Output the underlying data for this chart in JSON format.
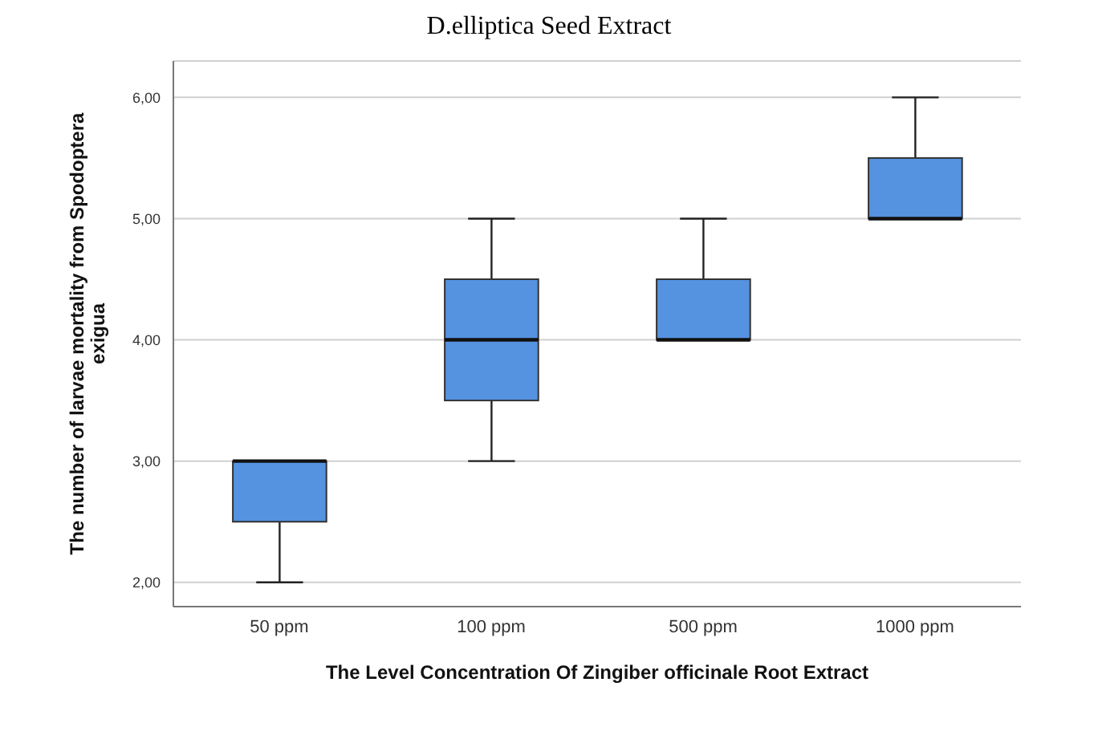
{
  "chart_data": {
    "type": "box",
    "title": "D.elliptica Seed Extract",
    "xlabel": "The Level Concentration Of Zingiber officinale Root Extract",
    "ylabel": "The number of larvae mortality from Spodoptera exigua",
    "categories": [
      "50 ppm",
      "100 ppm",
      "500 ppm",
      "1000 ppm"
    ],
    "series": [
      {
        "color": "#5592e0",
        "boxes": [
          {
            "low": 2,
            "q1": 2.5,
            "median": 3,
            "q3": 3,
            "high": 3
          },
          {
            "low": 3,
            "q1": 3.5,
            "median": 4,
            "q3": 4.5,
            "high": 5
          },
          {
            "low": 4,
            "q1": 4,
            "median": 4,
            "q3": 4.5,
            "high": 5
          },
          {
            "low": 5,
            "q1": 5,
            "median": 5,
            "q3": 5.5,
            "high": 6
          }
        ]
      }
    ],
    "ylim": [
      1.8,
      6.3
    ],
    "yticks": [
      {
        "value": 2,
        "label": "2,00"
      },
      {
        "value": 3,
        "label": "3,00"
      },
      {
        "value": 4,
        "label": "4,00"
      },
      {
        "value": 5,
        "label": "5,00"
      },
      {
        "value": 6,
        "label": "6,00"
      }
    ],
    "grid": "y"
  }
}
